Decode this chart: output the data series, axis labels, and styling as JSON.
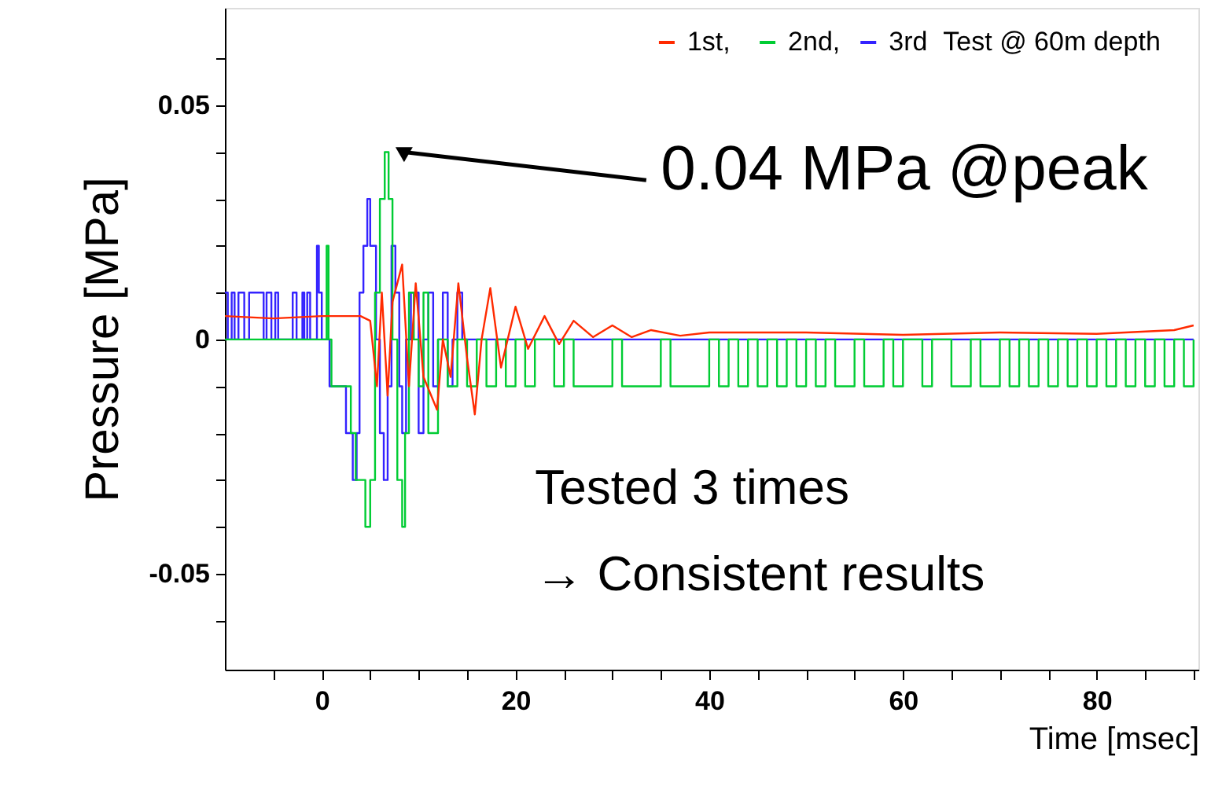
{
  "chart_data": {
    "type": "line",
    "xlabel": "Time [msec]",
    "ylabel": "Pressure [MPa]",
    "legend_title": "Test @ 60m depth",
    "legend": "top right",
    "grid": false,
    "xlim": [
      -10,
      90.5
    ],
    "ylim": [
      -0.0705,
      0.0708
    ],
    "xticks": [
      {
        "value": -5,
        "label": null
      },
      0,
      {
        "value": 5,
        "label": null
      },
      {
        "value": 10,
        "label": null
      },
      {
        "value": 15,
        "label": null
      },
      20,
      {
        "value": 25,
        "label": null
      },
      {
        "value": 30,
        "label": null
      },
      {
        "value": 35,
        "label": null
      },
      40,
      {
        "value": 45,
        "label": null
      },
      {
        "value": 50,
        "label": null
      },
      {
        "value": 55,
        "label": null
      },
      60,
      {
        "value": 65,
        "label": null
      },
      {
        "value": 70,
        "label": null
      },
      {
        "value": 75,
        "label": null
      },
      80,
      {
        "value": 85,
        "label": null
      },
      {
        "value": 90,
        "label": null
      }
    ],
    "yticks": [
      {
        "value": -0.06,
        "label": null
      },
      -0.05,
      {
        "value": -0.04,
        "label": null
      },
      {
        "value": -0.03,
        "label": null
      },
      {
        "value": -0.02,
        "label": null
      },
      {
        "value": -0.01,
        "label": null
      },
      0,
      {
        "value": 0.01,
        "label": null
      },
      {
        "value": 0.02,
        "label": null
      },
      {
        "value": 0.03,
        "label": null
      },
      {
        "value": 0.04,
        "label": null
      },
      0.05,
      {
        "value": 0.06,
        "label": null
      }
    ],
    "annotations": [
      {
        "text": "0.04 MPa @peak",
        "x": 7,
        "y": 0.04
      },
      "Tested 3 times",
      "→ Consistent results"
    ],
    "series": [
      {
        "name": "1st,",
        "color": "#ff2a00",
        "type": "line",
        "x": [
          -10,
          -5,
          0,
          4,
          5,
          5.7,
          6.2,
          6.8,
          7.3,
          8.3,
          9,
          9.7,
          10.5,
          11.9,
          12.5,
          13.3,
          14.1,
          15,
          15.8,
          16.5,
          17.4,
          18.5,
          20,
          21.3,
          23,
          24.5,
          26,
          28,
          30,
          32,
          34,
          37,
          40,
          50,
          60,
          70,
          80,
          88,
          90
        ],
        "values": [
          0.005,
          0.0045,
          0.005,
          0.005,
          0.004,
          -0.01,
          0.01,
          -0.012,
          0.008,
          0.016,
          -0.01,
          0.012,
          -0.008,
          -0.015,
          0.0,
          -0.008,
          0.012,
          -0.004,
          -0.016,
          0.0,
          0.011,
          -0.006,
          0.007,
          -0.002,
          0.005,
          -0.001,
          0.004,
          0.0005,
          0.003,
          0.0005,
          0.002,
          0.0008,
          0.0015,
          0.0015,
          0.001,
          0.0015,
          0.0012,
          0.002,
          0.003
        ]
      },
      {
        "name": "2nd,",
        "color": "#00cc33",
        "type": "step",
        "x": [
          -10,
          0.5,
          0.7,
          1,
          3,
          3.5,
          4.5,
          5,
          5.5,
          6,
          6.5,
          6.9,
          7.3,
          7.8,
          8.3,
          8.6,
          9,
          9.5,
          10,
          10.5,
          11,
          12,
          13,
          14,
          15,
          16,
          17,
          18,
          19,
          20,
          21,
          22,
          24,
          25,
          26,
          30,
          31,
          35,
          36,
          40,
          41,
          42,
          43,
          44,
          45,
          46,
          47,
          48,
          49,
          50,
          51,
          52,
          53,
          55,
          56,
          58,
          59,
          60,
          62,
          63,
          65,
          67,
          68,
          70,
          71,
          72,
          73,
          74,
          75,
          76,
          77,
          78,
          79,
          80,
          81,
          82,
          83,
          84,
          85,
          86,
          87,
          88,
          89,
          90
        ],
        "values": [
          0,
          0.02,
          0,
          -0.01,
          -0.02,
          -0.03,
          -0.04,
          -0.03,
          0.01,
          0.03,
          0.04,
          0.03,
          0,
          -0.03,
          -0.04,
          -0.02,
          0.01,
          0,
          -0.01,
          0.01,
          -0.02,
          0,
          -0.01,
          0,
          -0.01,
          0,
          -0.01,
          0,
          -0.01,
          0,
          -0.01,
          0,
          -0.01,
          0,
          -0.01,
          0,
          -0.01,
          0,
          -0.01,
          0,
          -0.01,
          0,
          -0.01,
          0,
          -0.01,
          0,
          -0.01,
          0,
          -0.01,
          0,
          -0.01,
          0,
          -0.01,
          0,
          -0.01,
          0,
          -0.01,
          0,
          -0.01,
          0,
          -0.01,
          0,
          -0.01,
          0,
          -0.01,
          0,
          -0.01,
          0,
          -0.01,
          0,
          -0.01,
          0,
          -0.01,
          0,
          -0.01,
          0,
          -0.01,
          0,
          -0.01,
          0,
          -0.01,
          0,
          -0.01,
          0
        ]
      },
      {
        "name": "3rd",
        "color": "#3322ff",
        "type": "step",
        "x": [
          -10,
          -9.7,
          -9.3,
          -9,
          -8.6,
          -8,
          -7.5,
          -6,
          -5.7,
          -5.2,
          -4.8,
          -4.5,
          -3,
          -2.6,
          -2,
          -1.8,
          -1.5,
          -1.2,
          -0.5,
          -0.3,
          0,
          0.8,
          1.5,
          2.5,
          3.2,
          3.6,
          3.9,
          4.3,
          4.7,
          5,
          5.6,
          6,
          6.4,
          6.8,
          7.2,
          7.6,
          8,
          8.3,
          8.7,
          9.2,
          9.6,
          10,
          10.5,
          11,
          11.5,
          12,
          12.5,
          13,
          13.5,
          14,
          14.5,
          15,
          16,
          90
        ],
        "values": [
          0.01,
          0,
          0.01,
          0,
          0.01,
          0,
          0.01,
          0,
          0.01,
          0,
          0.01,
          0,
          0.01,
          0,
          0.01,
          0,
          0.01,
          0,
          0.02,
          0.01,
          0,
          -0.01,
          -0.01,
          -0.02,
          -0.03,
          -0.02,
          0.01,
          0.02,
          0.03,
          0.02,
          0,
          -0.02,
          -0.03,
          -0.01,
          0.02,
          0.01,
          -0.01,
          -0.02,
          0,
          0.01,
          0.01,
          -0.02,
          0,
          0.01,
          -0.01,
          0,
          0.01,
          -0.01,
          0,
          0.01,
          0,
          0,
          0,
          0
        ]
      }
    ]
  }
}
